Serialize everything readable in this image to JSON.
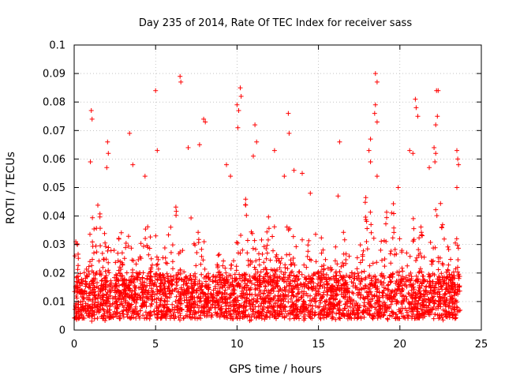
{
  "chart_data": {
    "type": "scatter",
    "title": "Day 235 of 2014, Rate Of TEC Index for receiver sass",
    "xlabel": "GPS time / hours",
    "ylabel": "ROTI / TECUs",
    "xlim": [
      0,
      25
    ],
    "ylim": [
      0,
      0.1
    ],
    "xticks": [
      0,
      5,
      10,
      15,
      20,
      25
    ],
    "xtick_labels": [
      "0",
      "5",
      "10",
      "15",
      "20",
      "25"
    ],
    "yticks": [
      0,
      0.01,
      0.02,
      0.03,
      0.04,
      0.05,
      0.06,
      0.07,
      0.08,
      0.09,
      0.1
    ],
    "ytick_labels": [
      "0",
      "0.01",
      "0.02",
      "0.03",
      "0.04",
      "0.05",
      "0.06",
      "0.07",
      "0.08",
      "0.09",
      "0.1"
    ],
    "grid": true,
    "marker": "+",
    "marker_color": "#ff0000",
    "x_range_of_data": [
      0,
      23.7
    ],
    "dense_band": [
      0.005,
      0.02
    ],
    "series": [
      {
        "name": "ROTI",
        "points": [
          [
            1.05,
            0.077
          ],
          [
            1.1,
            0.074
          ],
          [
            1.0,
            0.059
          ],
          [
            2.05,
            0.066
          ],
          [
            2.1,
            0.062
          ],
          [
            2.0,
            0.057
          ],
          [
            3.4,
            0.069
          ],
          [
            3.6,
            0.058
          ],
          [
            4.35,
            0.054
          ],
          [
            5.0,
            0.084
          ],
          [
            5.1,
            0.063
          ],
          [
            6.5,
            0.089
          ],
          [
            6.55,
            0.087
          ],
          [
            7.0,
            0.064
          ],
          [
            7.95,
            0.074
          ],
          [
            8.05,
            0.073
          ],
          [
            7.7,
            0.065
          ],
          [
            9.35,
            0.058
          ],
          [
            9.6,
            0.054
          ],
          [
            10.2,
            0.085
          ],
          [
            10.25,
            0.082
          ],
          [
            10.0,
            0.079
          ],
          [
            10.1,
            0.077
          ],
          [
            10.05,
            0.071
          ],
          [
            11.1,
            0.072
          ],
          [
            11.2,
            0.066
          ],
          [
            11.0,
            0.061
          ],
          [
            12.3,
            0.063
          ],
          [
            12.9,
            0.054
          ],
          [
            13.15,
            0.076
          ],
          [
            13.2,
            0.069
          ],
          [
            13.5,
            0.056
          ],
          [
            14.0,
            0.055
          ],
          [
            14.5,
            0.048
          ],
          [
            16.3,
            0.066
          ],
          [
            16.2,
            0.047
          ],
          [
            18.5,
            0.09
          ],
          [
            18.6,
            0.087
          ],
          [
            18.5,
            0.079
          ],
          [
            18.45,
            0.076
          ],
          [
            18.6,
            0.073
          ],
          [
            18.2,
            0.067
          ],
          [
            18.1,
            0.063
          ],
          [
            18.2,
            0.059
          ],
          [
            18.6,
            0.054
          ],
          [
            19.9,
            0.05
          ],
          [
            20.6,
            0.063
          ],
          [
            20.8,
            0.062
          ],
          [
            20.95,
            0.081
          ],
          [
            21.0,
            0.078
          ],
          [
            21.1,
            0.075
          ],
          [
            21.8,
            0.057
          ],
          [
            22.25,
            0.084
          ],
          [
            22.35,
            0.084
          ],
          [
            22.3,
            0.075
          ],
          [
            22.2,
            0.072
          ],
          [
            22.1,
            0.064
          ],
          [
            22.2,
            0.062
          ],
          [
            22.15,
            0.059
          ],
          [
            23.5,
            0.063
          ],
          [
            23.55,
            0.06
          ],
          [
            23.6,
            0.058
          ],
          [
            23.5,
            0.05
          ],
          [
            0.1,
            0.031
          ],
          [
            0.2,
            0.03
          ],
          [
            0.05,
            0.026
          ]
        ]
      }
    ],
    "activity_profile": [
      {
        "from": 0.0,
        "to": 0.6,
        "peak": 0.032
      },
      {
        "from": 0.6,
        "to": 1.3,
        "peak": 0.05
      },
      {
        "from": 1.3,
        "to": 2.3,
        "peak": 0.05
      },
      {
        "from": 2.3,
        "to": 3.2,
        "peak": 0.04
      },
      {
        "from": 3.2,
        "to": 4.0,
        "peak": 0.045
      },
      {
        "from": 4.0,
        "to": 5.2,
        "peak": 0.046
      },
      {
        "from": 5.2,
        "to": 6.2,
        "peak": 0.048
      },
      {
        "from": 6.2,
        "to": 7.2,
        "peak": 0.05
      },
      {
        "from": 7.2,
        "to": 8.5,
        "peak": 0.048
      },
      {
        "from": 8.5,
        "to": 9.6,
        "peak": 0.03
      },
      {
        "from": 9.6,
        "to": 11.2,
        "peak": 0.05
      },
      {
        "from": 11.2,
        "to": 13.0,
        "peak": 0.045
      },
      {
        "from": 13.0,
        "to": 14.8,
        "peak": 0.045
      },
      {
        "from": 14.8,
        "to": 16.2,
        "peak": 0.04
      },
      {
        "from": 16.2,
        "to": 17.5,
        "peak": 0.036
      },
      {
        "from": 17.5,
        "to": 19.0,
        "peak": 0.05
      },
      {
        "from": 19.0,
        "to": 20.2,
        "peak": 0.048
      },
      {
        "from": 20.2,
        "to": 21.3,
        "peak": 0.045
      },
      {
        "from": 21.3,
        "to": 22.5,
        "peak": 0.05
      },
      {
        "from": 22.5,
        "to": 23.7,
        "peak": 0.045
      }
    ]
  }
}
